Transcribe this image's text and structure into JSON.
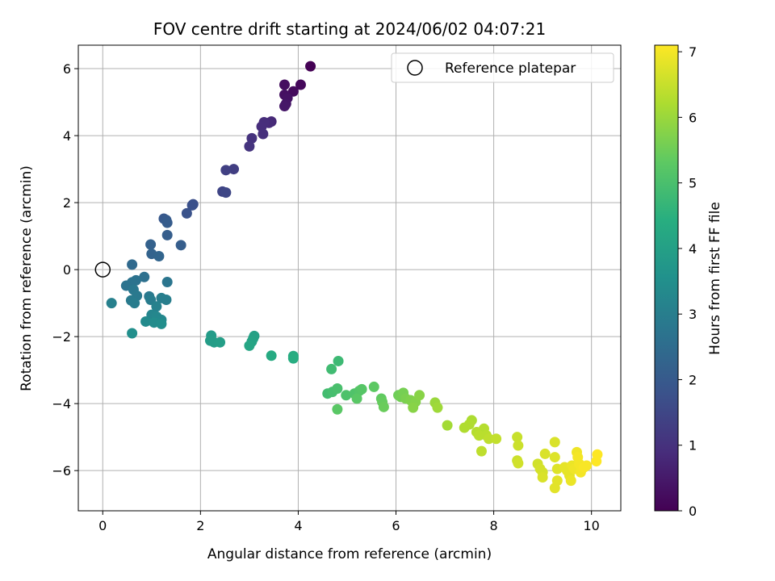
{
  "chart_data": {
    "type": "scatter",
    "title": "FOV centre drift starting at 2024/06/02 04:07:21",
    "xlabel": "Angular distance from reference (arcmin)",
    "ylabel": "Rotation from reference (arcmin)",
    "xlim": [
      -0.5,
      10.6
    ],
    "ylim": [
      -7.2,
      6.7
    ],
    "xticks": [
      0,
      2,
      4,
      6,
      8,
      10
    ],
    "yticks": [
      -6,
      -4,
      -2,
      0,
      2,
      4,
      6
    ],
    "grid": true,
    "legend": {
      "placement": "top-right",
      "entries": [
        "Reference platepar"
      ]
    },
    "reference_point": {
      "x": 0,
      "y": 0,
      "label": "Reference platepar",
      "marker": "open-circle"
    },
    "colorbar": {
      "label": "Hours from first FF file",
      "colormap": "viridis",
      "range": [
        0,
        7.1
      ],
      "ticks": [
        0,
        1,
        2,
        3,
        4,
        5,
        6,
        7
      ]
    },
    "points": [
      {
        "x": 4.25,
        "y": 6.07,
        "h": 0.0
      },
      {
        "x": 4.05,
        "y": 5.52,
        "h": 0.15
      },
      {
        "x": 3.9,
        "y": 5.32,
        "h": 0.2
      },
      {
        "x": 3.72,
        "y": 5.52,
        "h": 0.25
      },
      {
        "x": 3.72,
        "y": 5.22,
        "h": 0.3
      },
      {
        "x": 3.78,
        "y": 5.12,
        "h": 0.35
      },
      {
        "x": 3.75,
        "y": 4.95,
        "h": 0.4
      },
      {
        "x": 3.72,
        "y": 4.88,
        "h": 0.45
      },
      {
        "x": 3.45,
        "y": 4.42,
        "h": 0.8
      },
      {
        "x": 3.4,
        "y": 4.38,
        "h": 0.85
      },
      {
        "x": 3.3,
        "y": 4.4,
        "h": 0.9
      },
      {
        "x": 3.25,
        "y": 4.27,
        "h": 0.92
      },
      {
        "x": 3.28,
        "y": 4.05,
        "h": 0.95
      },
      {
        "x": 3.05,
        "y": 3.92,
        "h": 1.0
      },
      {
        "x": 3.0,
        "y": 3.68,
        "h": 1.05
      },
      {
        "x": 2.68,
        "y": 3.0,
        "h": 1.3
      },
      {
        "x": 2.52,
        "y": 2.97,
        "h": 1.35
      },
      {
        "x": 2.45,
        "y": 2.33,
        "h": 1.45
      },
      {
        "x": 2.52,
        "y": 2.3,
        "h": 1.5
      },
      {
        "x": 1.85,
        "y": 1.95,
        "h": 1.7
      },
      {
        "x": 1.83,
        "y": 1.92,
        "h": 1.75
      },
      {
        "x": 1.72,
        "y": 1.68,
        "h": 1.8
      },
      {
        "x": 1.25,
        "y": 1.52,
        "h": 1.95
      },
      {
        "x": 1.3,
        "y": 1.48,
        "h": 2.0
      },
      {
        "x": 1.32,
        "y": 1.4,
        "h": 2.05
      },
      {
        "x": 1.32,
        "y": 1.03,
        "h": 2.1
      },
      {
        "x": 1.6,
        "y": 0.73,
        "h": 2.1
      },
      {
        "x": 0.98,
        "y": 0.75,
        "h": 2.2
      },
      {
        "x": 1.0,
        "y": 0.47,
        "h": 2.25
      },
      {
        "x": 1.15,
        "y": 0.4,
        "h": 2.3
      },
      {
        "x": 0.6,
        "y": 0.15,
        "h": 2.4
      },
      {
        "x": 0.85,
        "y": -0.22,
        "h": 2.6
      },
      {
        "x": 0.68,
        "y": -0.32,
        "h": 2.65
      },
      {
        "x": 0.6,
        "y": -0.38,
        "h": 2.7
      },
      {
        "x": 0.48,
        "y": -0.48,
        "h": 2.7
      },
      {
        "x": 1.32,
        "y": -0.37,
        "h": 2.75
      },
      {
        "x": 0.63,
        "y": -0.6,
        "h": 2.8
      },
      {
        "x": 0.7,
        "y": -0.78,
        "h": 2.85
      },
      {
        "x": 0.95,
        "y": -0.8,
        "h": 2.85
      },
      {
        "x": 0.58,
        "y": -0.92,
        "h": 2.9
      },
      {
        "x": 0.65,
        "y": -1.0,
        "h": 2.95
      },
      {
        "x": 0.98,
        "y": -0.9,
        "h": 2.95
      },
      {
        "x": 1.2,
        "y": -0.85,
        "h": 3.0
      },
      {
        "x": 1.3,
        "y": -0.9,
        "h": 3.0
      },
      {
        "x": 0.18,
        "y": -1.0,
        "h": 3.05
      },
      {
        "x": 1.1,
        "y": -1.1,
        "h": 3.1
      },
      {
        "x": 1.0,
        "y": -1.35,
        "h": 3.2
      },
      {
        "x": 1.1,
        "y": -1.4,
        "h": 3.25
      },
      {
        "x": 1.2,
        "y": -1.5,
        "h": 3.3
      },
      {
        "x": 0.88,
        "y": -1.55,
        "h": 3.35
      },
      {
        "x": 1.05,
        "y": -1.58,
        "h": 3.4
      },
      {
        "x": 1.2,
        "y": -1.62,
        "h": 3.45
      },
      {
        "x": 0.6,
        "y": -1.9,
        "h": 3.5
      },
      {
        "x": 2.22,
        "y": -1.97,
        "h": 3.85
      },
      {
        "x": 2.2,
        "y": -2.12,
        "h": 3.9
      },
      {
        "x": 2.28,
        "y": -2.17,
        "h": 3.9
      },
      {
        "x": 2.4,
        "y": -2.17,
        "h": 3.95
      },
      {
        "x": 3.1,
        "y": -1.98,
        "h": 4.0
      },
      {
        "x": 3.08,
        "y": -2.05,
        "h": 4.05
      },
      {
        "x": 3.05,
        "y": -2.15,
        "h": 4.1
      },
      {
        "x": 3.0,
        "y": -2.27,
        "h": 4.15
      },
      {
        "x": 3.45,
        "y": -2.57,
        "h": 4.3
      },
      {
        "x": 3.9,
        "y": -2.58,
        "h": 4.35
      },
      {
        "x": 3.9,
        "y": -2.65,
        "h": 4.4
      },
      {
        "x": 4.82,
        "y": -2.73,
        "h": 4.8
      },
      {
        "x": 4.68,
        "y": -2.97,
        "h": 4.85
      },
      {
        "x": 4.6,
        "y": -3.7,
        "h": 4.9
      },
      {
        "x": 4.7,
        "y": -3.65,
        "h": 4.95
      },
      {
        "x": 4.8,
        "y": -3.55,
        "h": 5.0
      },
      {
        "x": 4.98,
        "y": -3.75,
        "h": 5.05
      },
      {
        "x": 5.15,
        "y": -3.7,
        "h": 5.1
      },
      {
        "x": 5.25,
        "y": -3.62,
        "h": 5.15
      },
      {
        "x": 5.3,
        "y": -3.57,
        "h": 5.2
      },
      {
        "x": 5.2,
        "y": -3.85,
        "h": 5.25
      },
      {
        "x": 4.8,
        "y": -4.17,
        "h": 5.25
      },
      {
        "x": 5.55,
        "y": -3.5,
        "h": 5.3
      },
      {
        "x": 5.7,
        "y": -3.85,
        "h": 5.35
      },
      {
        "x": 5.72,
        "y": -3.95,
        "h": 5.4
      },
      {
        "x": 5.75,
        "y": -4.1,
        "h": 5.45
      },
      {
        "x": 6.05,
        "y": -3.75,
        "h": 5.5
      },
      {
        "x": 6.1,
        "y": -3.8,
        "h": 5.55
      },
      {
        "x": 6.15,
        "y": -3.68,
        "h": 5.6
      },
      {
        "x": 6.2,
        "y": -3.85,
        "h": 5.65
      },
      {
        "x": 6.3,
        "y": -3.9,
        "h": 5.7
      },
      {
        "x": 6.4,
        "y": -3.95,
        "h": 5.75
      },
      {
        "x": 6.35,
        "y": -4.12,
        "h": 5.8
      },
      {
        "x": 6.48,
        "y": -3.75,
        "h": 5.8
      },
      {
        "x": 6.8,
        "y": -3.97,
        "h": 6.0
      },
      {
        "x": 6.85,
        "y": -4.12,
        "h": 6.05
      },
      {
        "x": 7.05,
        "y": -4.65,
        "h": 6.1
      },
      {
        "x": 7.55,
        "y": -4.5,
        "h": 6.2
      },
      {
        "x": 7.5,
        "y": -4.62,
        "h": 6.25
      },
      {
        "x": 7.4,
        "y": -4.72,
        "h": 6.25
      },
      {
        "x": 7.8,
        "y": -4.75,
        "h": 6.3
      },
      {
        "x": 7.65,
        "y": -4.85,
        "h": 6.3
      },
      {
        "x": 7.7,
        "y": -4.95,
        "h": 6.35
      },
      {
        "x": 7.85,
        "y": -4.95,
        "h": 6.35
      },
      {
        "x": 7.75,
        "y": -5.42,
        "h": 6.4
      },
      {
        "x": 7.9,
        "y": -5.05,
        "h": 6.4
      },
      {
        "x": 8.05,
        "y": -5.05,
        "h": 6.45
      },
      {
        "x": 8.48,
        "y": -5.0,
        "h": 6.5
      },
      {
        "x": 8.5,
        "y": -5.25,
        "h": 6.55
      },
      {
        "x": 8.48,
        "y": -5.7,
        "h": 6.55
      },
      {
        "x": 8.5,
        "y": -5.78,
        "h": 6.6
      },
      {
        "x": 8.9,
        "y": -5.8,
        "h": 6.6
      },
      {
        "x": 8.95,
        "y": -5.95,
        "h": 6.65
      },
      {
        "x": 9.0,
        "y": -6.05,
        "h": 6.65
      },
      {
        "x": 9.0,
        "y": -6.2,
        "h": 6.7
      },
      {
        "x": 9.05,
        "y": -5.5,
        "h": 6.7
      },
      {
        "x": 9.25,
        "y": -5.15,
        "h": 6.7
      },
      {
        "x": 9.25,
        "y": -5.6,
        "h": 6.75
      },
      {
        "x": 9.3,
        "y": -5.95,
        "h": 6.75
      },
      {
        "x": 9.3,
        "y": -6.3,
        "h": 6.8
      },
      {
        "x": 9.25,
        "y": -6.52,
        "h": 6.8
      },
      {
        "x": 9.45,
        "y": -5.9,
        "h": 6.85
      },
      {
        "x": 9.5,
        "y": -6.0,
        "h": 6.85
      },
      {
        "x": 9.55,
        "y": -6.15,
        "h": 6.85
      },
      {
        "x": 9.58,
        "y": -6.3,
        "h": 6.9
      },
      {
        "x": 9.6,
        "y": -5.85,
        "h": 6.9
      },
      {
        "x": 9.65,
        "y": -5.95,
        "h": 6.95
      },
      {
        "x": 9.7,
        "y": -5.45,
        "h": 6.95
      },
      {
        "x": 9.72,
        "y": -5.6,
        "h": 7.0
      },
      {
        "x": 9.75,
        "y": -5.8,
        "h": 7.0
      },
      {
        "x": 9.78,
        "y": -6.05,
        "h": 7.0
      },
      {
        "x": 9.85,
        "y": -5.9,
        "h": 7.05
      },
      {
        "x": 9.9,
        "y": -5.85,
        "h": 7.05
      },
      {
        "x": 10.1,
        "y": -5.72,
        "h": 7.1
      },
      {
        "x": 10.12,
        "y": -5.52,
        "h": 7.1
      }
    ]
  }
}
